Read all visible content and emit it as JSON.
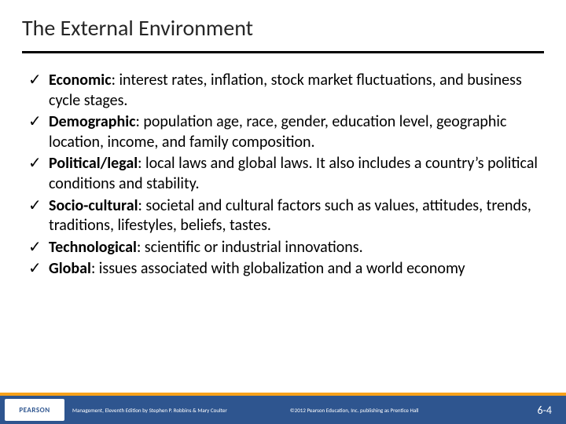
{
  "title": "The External Environment",
  "colors": {
    "title_text": "#262626",
    "rule": "#000000",
    "body_text": "#000000",
    "footer_orange": "#f7a11a",
    "footer_navy": "#2e558f",
    "logo_bg": "#ffffff",
    "logo_text": "#2e558f",
    "footer_text": "#ffffff"
  },
  "typography": {
    "title_fontsize": 28,
    "body_fontsize": 20,
    "footer_fontsize": 7,
    "page_num_fontsize": 14
  },
  "bullets": [
    {
      "term": "Economic",
      "desc": ": interest rates, inflation, stock market fluctuations, and business cycle stages."
    },
    {
      "term": "Demographic",
      "desc": ": population age, race, gender, education level, geographic location, income, and family composition."
    },
    {
      "term": "Political/legal",
      "desc": ": local laws and global laws. It also includes a country’s political conditions and stability."
    },
    {
      "term": "Socio-cultural",
      "desc": ": societal and cultural factors such as values, attitudes, trends, traditions, lifestyles, beliefs, tastes."
    },
    {
      "term": "Technological",
      "desc": ": scientific or industrial innovations."
    },
    {
      "term": "Global",
      "desc": ": issues associated with globalization and a world economy"
    }
  ],
  "footer": {
    "logo_text": "PEARSON",
    "book_credit": "Management, Eleventh Edition by Stephen P. Robbins & Mary Coulter",
    "copyright": "©2012 Pearson Education, Inc. publishing as Prentice Hall",
    "page_number": "6-4"
  }
}
